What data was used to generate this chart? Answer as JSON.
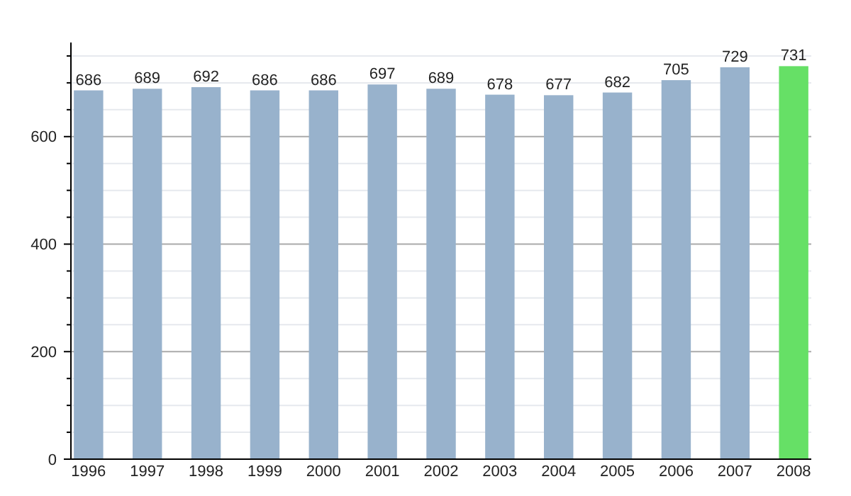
{
  "chart_data": {
    "type": "bar",
    "categories": [
      "1996",
      "1997",
      "1998",
      "1999",
      "2000",
      "2001",
      "2002",
      "2003",
      "2004",
      "2005",
      "2006",
      "2007",
      "2008"
    ],
    "values": [
      686,
      689,
      692,
      686,
      686,
      697,
      689,
      678,
      677,
      682,
      705,
      729,
      731
    ],
    "colors": [
      "#98b2cc",
      "#98b2cc",
      "#98b2cc",
      "#98b2cc",
      "#98b2cc",
      "#98b2cc",
      "#98b2cc",
      "#98b2cc",
      "#98b2cc",
      "#98b2cc",
      "#98b2cc",
      "#98b2cc",
      "#66e066"
    ],
    "ylim": [
      0,
      775
    ],
    "yticks": [
      0,
      {
        "value": 50,
        "label": null
      },
      {
        "value": 100,
        "label": null
      },
      {
        "value": 150,
        "label": null
      },
      200,
      {
        "value": 250,
        "label": null
      },
      {
        "value": 300,
        "label": null
      },
      {
        "value": 350,
        "label": null
      },
      400,
      {
        "value": 450,
        "label": null
      },
      {
        "value": 500,
        "label": null
      },
      {
        "value": 550,
        "label": null
      },
      600,
      {
        "value": 650,
        "label": null
      },
      {
        "value": 700,
        "label": null
      },
      {
        "value": 750,
        "label": null
      }
    ],
    "grid": "y",
    "data_labels": true
  }
}
